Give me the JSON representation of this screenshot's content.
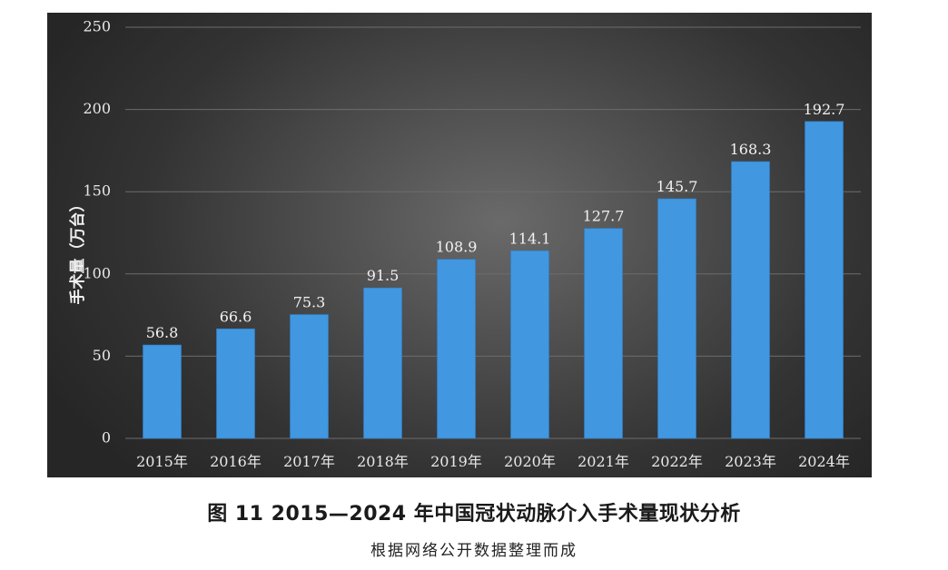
{
  "figure": {
    "caption": "图 11   2015—2024 年中国冠状动脉介入手术量现状分析",
    "source_note": "根据网络公开数据整理而成"
  },
  "colors": {
    "bar": "#4197e0",
    "bar_edge": "#2f7fc8",
    "gridline": "#6c6c6c"
  },
  "chart_data": {
    "type": "bar",
    "title": "",
    "xlabel": "",
    "ylabel": "手术量（万台）",
    "categories": [
      "2015年",
      "2016年",
      "2017年",
      "2018年",
      "2019年",
      "2020年",
      "2021年",
      "2022年",
      "2023年",
      "2024年"
    ],
    "series": [
      {
        "values": [
          56.8,
          66.6,
          75.3,
          91.5,
          108.9,
          114.1,
          127.7,
          145.7,
          168.3,
          192.7
        ]
      }
    ],
    "data_labels": [
      "56.8",
      "66.6",
      "75.3",
      "91.5",
      "108.9",
      "114.1",
      "127.7",
      "145.7",
      "168.3",
      "192.7"
    ],
    "ylim": [
      0,
      250
    ],
    "yticks": [
      0,
      50,
      100,
      150,
      200,
      250
    ],
    "grid": true,
    "legend": "none"
  }
}
